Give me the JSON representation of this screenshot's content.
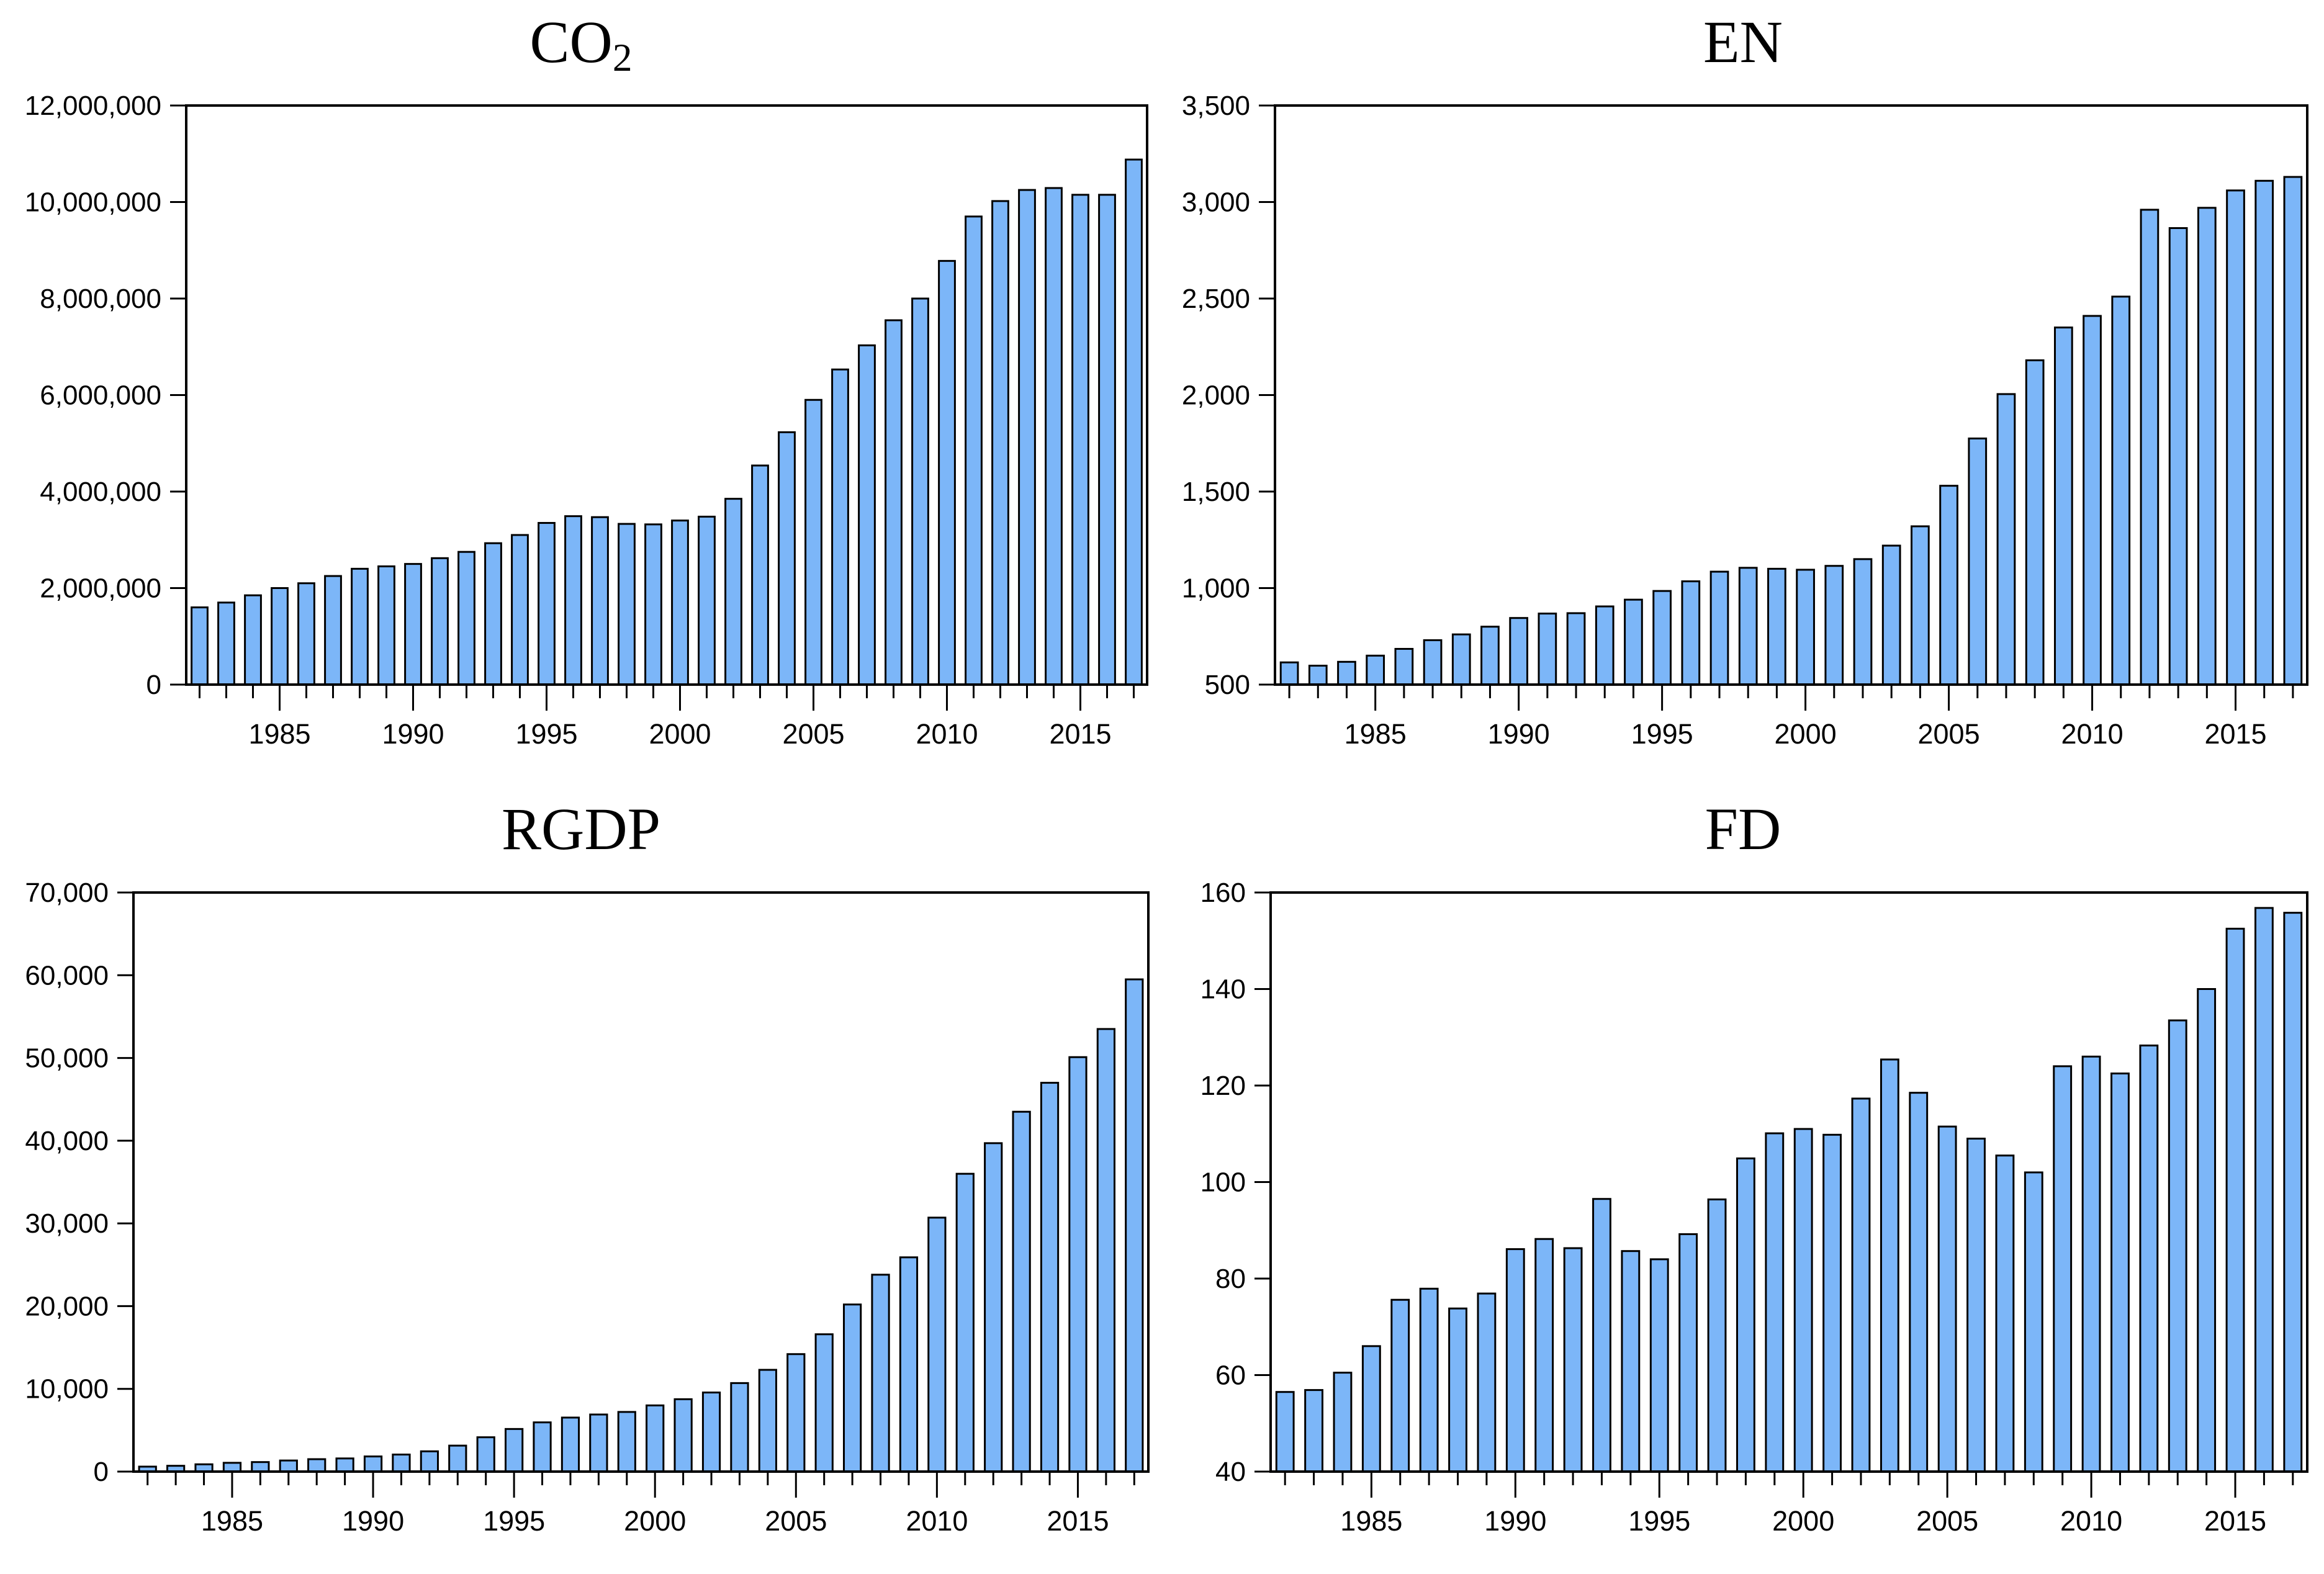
{
  "page": {
    "background": "#ffffff"
  },
  "style": {
    "bar_fill": "#7CB6F8",
    "bar_stroke": "#000000",
    "axis_color": "#000000",
    "text_color": "#000000"
  },
  "chart_data": [
    {
      "type": "bar",
      "title": "CO2",
      "title_main": "CO",
      "title_sub": "2",
      "xlabel": "",
      "ylabel": "",
      "grid": false,
      "legend": "none",
      "years": [
        1982,
        1983,
        1984,
        1985,
        1986,
        1987,
        1988,
        1989,
        1990,
        1991,
        1992,
        1993,
        1994,
        1995,
        1996,
        1997,
        1998,
        1999,
        2000,
        2001,
        2002,
        2003,
        2004,
        2005,
        2006,
        2007,
        2008,
        2009,
        2010,
        2011,
        2012,
        2013,
        2014,
        2015,
        2016,
        2017
      ],
      "values": [
        1600000,
        1700000,
        1850000,
        2000000,
        2100000,
        2250000,
        2400000,
        2450000,
        2500000,
        2620000,
        2750000,
        2930000,
        3100000,
        3350000,
        3490000,
        3470000,
        3330000,
        3320000,
        3400000,
        3480000,
        3850000,
        4540000,
        5230000,
        5900000,
        6530000,
        7030000,
        7550000,
        8000000,
        8780000,
        9700000,
        10020000,
        10250000,
        10290000,
        10150000,
        10150000,
        10880000
      ],
      "ylim": [
        0,
        12000000
      ],
      "ytick_step": 2000000,
      "xtick_labels": [
        1985,
        1990,
        1995,
        2000,
        2005,
        2010,
        2015
      ]
    },
    {
      "type": "bar",
      "title": "EN",
      "title_main": "EN",
      "title_sub": "",
      "xlabel": "",
      "ylabel": "",
      "grid": false,
      "legend": "none",
      "years": [
        1982,
        1983,
        1984,
        1985,
        1986,
        1987,
        1988,
        1989,
        1990,
        1991,
        1992,
        1993,
        1994,
        1995,
        1996,
        1997,
        1998,
        1999,
        2000,
        2001,
        2002,
        2003,
        2004,
        2005,
        2006,
        2007,
        2008,
        2009,
        2010,
        2011,
        2012,
        2013,
        2014,
        2015,
        2016,
        2017
      ],
      "values": [
        615,
        598,
        618,
        650,
        685,
        730,
        760,
        800,
        845,
        868,
        870,
        905,
        940,
        985,
        1035,
        1085,
        1105,
        1100,
        1095,
        1115,
        1150,
        1220,
        1320,
        1530,
        1775,
        2005,
        2180,
        2350,
        2410,
        2510,
        2960,
        2865,
        2970,
        3060,
        3110,
        3130
      ],
      "ylim": [
        500,
        3500
      ],
      "ytick_step": 500,
      "xtick_labels": [
        1985,
        1990,
        1995,
        2000,
        2005,
        2010,
        2015
      ]
    },
    {
      "type": "bar",
      "title": "RGDP",
      "title_main": "RGDP",
      "title_sub": "",
      "xlabel": "",
      "ylabel": "",
      "grid": false,
      "legend": "none",
      "years": [
        1982,
        1983,
        1984,
        1985,
        1986,
        1987,
        1988,
        1989,
        1990,
        1991,
        1992,
        1993,
        1994,
        1995,
        1996,
        1997,
        1998,
        1999,
        2000,
        2001,
        2002,
        2003,
        2004,
        2005,
        2006,
        2007,
        2008,
        2009,
        2010,
        2011,
        2012,
        2013,
        2014,
        2015,
        2016,
        2017
      ],
      "values": [
        600,
        700,
        880,
        1060,
        1150,
        1340,
        1500,
        1590,
        1830,
        2060,
        2450,
        3140,
        4150,
        5150,
        5950,
        6530,
        6900,
        7210,
        8000,
        8750,
        9560,
        10700,
        12300,
        14200,
        16600,
        20200,
        23800,
        25900,
        30700,
        36000,
        39700,
        43500,
        47000,
        50100,
        53500,
        59500
      ],
      "ylim": [
        0,
        70000
      ],
      "ytick_step": 10000,
      "xtick_labels": [
        1985,
        1990,
        1995,
        2000,
        2005,
        2010,
        2015
      ]
    },
    {
      "type": "bar",
      "title": "FD",
      "title_main": "FD",
      "title_sub": "",
      "xlabel": "",
      "ylabel": "",
      "grid": false,
      "legend": "none",
      "years": [
        1982,
        1983,
        1984,
        1985,
        1986,
        1987,
        1988,
        1989,
        1990,
        1991,
        1992,
        1993,
        1994,
        1995,
        1996,
        1997,
        1998,
        1999,
        2000,
        2001,
        2002,
        2003,
        2004,
        2005,
        2006,
        2007,
        2008,
        2009,
        2010,
        2011,
        2012,
        2013,
        2014,
        2015,
        2016,
        2017
      ],
      "values": [
        56.5,
        56.9,
        60.5,
        66.0,
        75.6,
        77.9,
        73.8,
        76.9,
        86.1,
        88.2,
        86.3,
        96.5,
        85.7,
        84.0,
        89.2,
        96.4,
        104.9,
        110.1,
        111.0,
        109.8,
        117.3,
        125.4,
        118.5,
        111.5,
        109.0,
        105.5,
        102.0,
        124.0,
        126.0,
        122.5,
        128.3,
        133.5,
        140.0,
        152.5,
        156.8,
        155.8
      ],
      "ylim": [
        40,
        160
      ],
      "ytick_step": 20,
      "xtick_labels": [
        1985,
        1990,
        1995,
        2000,
        2005,
        2010,
        2015
      ]
    }
  ]
}
